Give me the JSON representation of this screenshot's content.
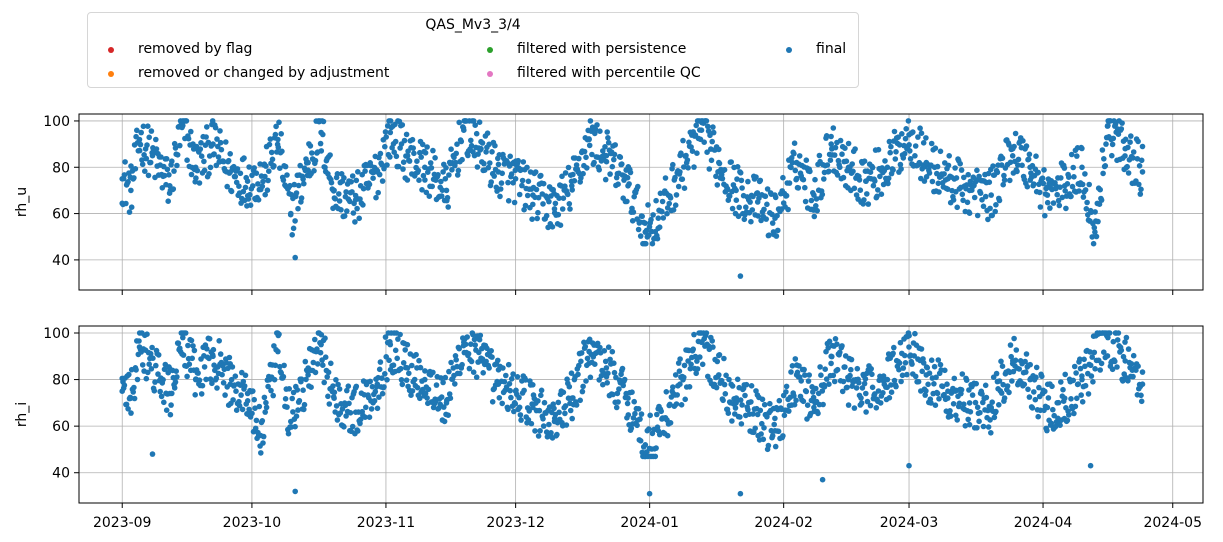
{
  "legend": {
    "title": "QAS_Mv3_3/4",
    "items": [
      {
        "label": "removed by flag",
        "color": "#d62728"
      },
      {
        "label": "removed or changed by adjustment",
        "color": "#ff7f0e"
      },
      {
        "label": "filtered with persistence",
        "color": "#2ca02c"
      },
      {
        "label": "filtered with percentile QC",
        "color": "#e377c2"
      },
      {
        "label": "final",
        "color": "#1f77b4"
      }
    ]
  },
  "chart_data": [
    {
      "type": "scatter",
      "ylabel": "rh_u",
      "ylim": [
        27,
        103
      ],
      "yticks": [
        40,
        60,
        80,
        100
      ],
      "xlim": [
        "2023-08-22",
        "2024-05-08"
      ],
      "xticks": [
        "2023-09",
        "2023-10",
        "2023-11",
        "2023-12",
        "2024-01",
        "2024-02",
        "2024-03",
        "2024-04",
        "2024-05"
      ],
      "grid": true,
      "series": [
        {
          "name": "final",
          "color": "#1f77b4",
          "x_range": [
            "2023-09-01",
            "2024-04-24"
          ],
          "samples": [
            [
              "2023-09-01",
              75
            ],
            [
              "2023-09-03",
              70
            ],
            [
              "2023-09-05",
              92
            ],
            [
              "2023-09-08",
              85
            ],
            [
              "2023-09-12",
              72
            ],
            [
              "2023-09-15",
              98
            ],
            [
              "2023-09-18",
              80
            ],
            [
              "2023-09-22",
              90
            ],
            [
              "2023-09-26",
              78
            ],
            [
              "2023-09-30",
              74
            ],
            [
              "2023-10-04",
              76
            ],
            [
              "2023-10-07",
              92
            ],
            [
              "2023-10-10",
              60
            ],
            [
              "2023-10-11",
              41
            ],
            [
              "2023-10-14",
              82
            ],
            [
              "2023-10-17",
              95
            ],
            [
              "2023-10-20",
              70
            ],
            [
              "2023-10-25",
              66
            ],
            [
              "2023-10-30",
              78
            ],
            [
              "2023-11-02",
              95
            ],
            [
              "2023-11-06",
              85
            ],
            [
              "2023-11-10",
              80
            ],
            [
              "2023-11-15",
              70
            ],
            [
              "2023-11-19",
              96
            ],
            [
              "2023-11-23",
              88
            ],
            [
              "2023-11-27",
              78
            ],
            [
              "2023-12-01",
              75
            ],
            [
              "2023-12-05",
              68
            ],
            [
              "2023-12-10",
              62
            ],
            [
              "2023-12-14",
              72
            ],
            [
              "2023-12-18",
              92
            ],
            [
              "2023-12-22",
              85
            ],
            [
              "2023-12-27",
              72
            ],
            [
              "2023-12-31",
              52
            ],
            [
              "2024-01-03",
              58
            ],
            [
              "2024-01-08",
              78
            ],
            [
              "2024-01-13",
              96
            ],
            [
              "2024-01-17",
              82
            ],
            [
              "2024-01-21",
              70
            ],
            [
              "2024-01-22",
              33
            ],
            [
              "2024-01-26",
              65
            ],
            [
              "2024-01-30",
              58
            ],
            [
              "2024-02-04",
              82
            ],
            [
              "2024-02-08",
              68
            ],
            [
              "2024-02-12",
              90
            ],
            [
              "2024-02-16",
              80
            ],
            [
              "2024-02-20",
              74
            ],
            [
              "2024-02-25",
              80
            ],
            [
              "2024-03-01",
              94
            ],
            [
              "2024-03-05",
              82
            ],
            [
              "2024-03-10",
              75
            ],
            [
              "2024-03-15",
              70
            ],
            [
              "2024-03-20",
              68
            ],
            [
              "2024-03-25",
              88
            ],
            [
              "2024-03-29",
              80
            ],
            [
              "2024-04-02",
              68
            ],
            [
              "2024-04-06",
              72
            ],
            [
              "2024-04-10",
              80
            ],
            [
              "2024-04-13",
              52
            ],
            [
              "2024-04-16",
              98
            ],
            [
              "2024-04-20",
              88
            ],
            [
              "2024-04-24",
              78
            ]
          ]
        }
      ]
    },
    {
      "type": "scatter",
      "ylabel": "rh_i",
      "ylim": [
        27,
        103
      ],
      "yticks": [
        40,
        60,
        80,
        100
      ],
      "xlim": [
        "2023-08-22",
        "2024-05-08"
      ],
      "xticks": [
        "2023-09",
        "2023-10",
        "2023-11",
        "2023-12",
        "2024-01",
        "2024-02",
        "2024-03",
        "2024-04",
        "2024-05"
      ],
      "xlabel": "",
      "grid": true,
      "series": [
        {
          "name": "final",
          "color": "#1f77b4",
          "x_range": [
            "2023-09-01",
            "2024-04-24"
          ],
          "samples": [
            [
              "2023-09-01",
              75
            ],
            [
              "2023-09-03",
              72
            ],
            [
              "2023-09-05",
              94
            ],
            [
              "2023-09-08",
              48
            ],
            [
              "2023-09-12",
              74
            ],
            [
              "2023-09-15",
              98
            ],
            [
              "2023-09-18",
              80
            ],
            [
              "2023-09-22",
              90
            ],
            [
              "2023-09-26",
              78
            ],
            [
              "2023-09-30",
              74
            ],
            [
              "2023-10-03",
              56
            ],
            [
              "2023-10-07",
              92
            ],
            [
              "2023-10-10",
              62
            ],
            [
              "2023-10-11",
              32
            ],
            [
              "2023-10-14",
              82
            ],
            [
              "2023-10-17",
              95
            ],
            [
              "2023-10-20",
              72
            ],
            [
              "2023-10-25",
              66
            ],
            [
              "2023-10-30",
              78
            ],
            [
              "2023-11-02",
              95
            ],
            [
              "2023-11-06",
              85
            ],
            [
              "2023-11-10",
              80
            ],
            [
              "2023-11-15",
              70
            ],
            [
              "2023-11-19",
              96
            ],
            [
              "2023-11-23",
              88
            ],
            [
              "2023-11-27",
              78
            ],
            [
              "2023-12-01",
              75
            ],
            [
              "2023-12-05",
              68
            ],
            [
              "2023-12-10",
              62
            ],
            [
              "2023-12-14",
              72
            ],
            [
              "2023-12-18",
              92
            ],
            [
              "2023-12-22",
              85
            ],
            [
              "2023-12-27",
              72
            ],
            [
              "2023-12-31",
              52
            ],
            [
              "2024-01-01",
              31
            ],
            [
              "2024-01-03",
              58
            ],
            [
              "2024-01-08",
              78
            ],
            [
              "2024-01-13",
              96
            ],
            [
              "2024-01-17",
              82
            ],
            [
              "2024-01-21",
              70
            ],
            [
              "2024-01-22",
              31
            ],
            [
              "2024-01-26",
              65
            ],
            [
              "2024-01-30",
              58
            ],
            [
              "2024-02-04",
              82
            ],
            [
              "2024-02-08",
              68
            ],
            [
              "2024-02-10",
              37
            ],
            [
              "2024-02-12",
              90
            ],
            [
              "2024-02-16",
              80
            ],
            [
              "2024-02-20",
              74
            ],
            [
              "2024-02-25",
              80
            ],
            [
              "2024-03-01",
              94
            ],
            [
              "2024-03-01",
              43
            ],
            [
              "2024-03-05",
              82
            ],
            [
              "2024-03-10",
              75
            ],
            [
              "2024-03-15",
              70
            ],
            [
              "2024-03-20",
              68
            ],
            [
              "2024-03-25",
              88
            ],
            [
              "2024-03-29",
              80
            ],
            [
              "2024-04-02",
              68
            ],
            [
              "2024-04-06",
              72
            ],
            [
              "2024-04-10",
              80
            ],
            [
              "2024-04-12",
              43
            ],
            [
              "2024-04-16",
              98
            ],
            [
              "2024-04-20",
              88
            ],
            [
              "2024-04-24",
              78
            ]
          ]
        }
      ]
    }
  ]
}
